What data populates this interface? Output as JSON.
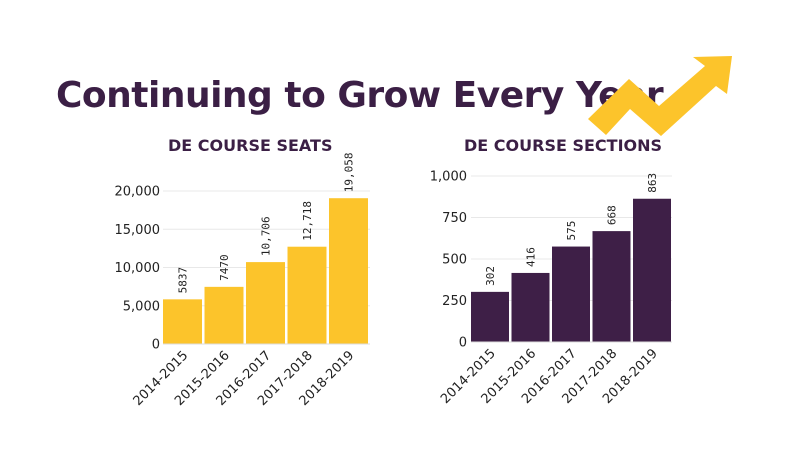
{
  "title": "Continuing to Grow Every Year",
  "decoration": {
    "icon": "rising-arrow-icon",
    "color": "#fcc42b"
  },
  "chart_data": [
    {
      "type": "bar",
      "title": "DE COURSE SEATS",
      "categories": [
        "2014-2015",
        "2015-2016",
        "2016-2017",
        "2017-2018",
        "2018-2019"
      ],
      "values": [
        5837,
        7470,
        10706,
        12718,
        19058
      ],
      "value_labels": [
        "5837",
        "7470",
        "10,706",
        "12,718",
        "19,058"
      ],
      "ylim": [
        0,
        20000
      ],
      "yticks": [
        0,
        5000,
        10000,
        15000,
        20000
      ],
      "ytick_labels": [
        "0",
        "5,000",
        "10,000",
        "15,000",
        "20,000"
      ],
      "xlabel": "",
      "ylabel": "",
      "color": "#fcc42b",
      "grid": true
    },
    {
      "type": "bar",
      "title": "DE COURSE SECTIONS",
      "categories": [
        "2014-2015",
        "2015-2016",
        "2016-2017",
        "2017-2018",
        "2018-2019"
      ],
      "values": [
        302,
        416,
        575,
        668,
        863
      ],
      "value_labels": [
        "302",
        "416",
        "575",
        "668",
        "863"
      ],
      "ylim": [
        0,
        1000
      ],
      "yticks": [
        0,
        250,
        500,
        750,
        1000
      ],
      "ytick_labels": [
        "0",
        "250",
        "500",
        "750",
        "1,000"
      ],
      "xlabel": "",
      "ylabel": "",
      "color": "#3e1f47",
      "grid": true
    }
  ]
}
